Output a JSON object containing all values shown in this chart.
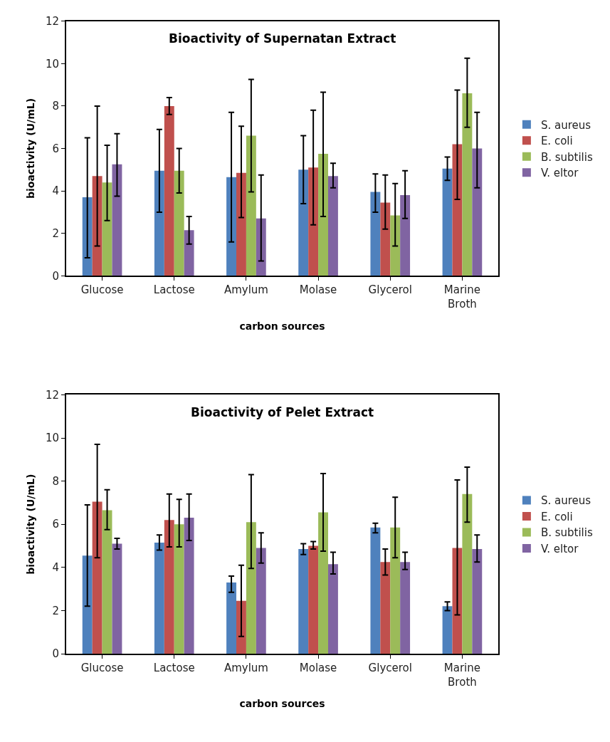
{
  "chart_data": [
    {
      "type": "bar",
      "title": "Bioactivity of Supernatan Extract",
      "xlabel": "carbon sources",
      "ylabel": "bioactivity (U/mL)",
      "categories": [
        "Glucose",
        "Lactose",
        "Amylum",
        "Molase",
        "Glycerol",
        "Marine Broth"
      ],
      "ylim": [
        0,
        12
      ],
      "yticks": [
        0,
        2,
        4,
        6,
        8,
        10,
        12
      ],
      "legend": "right",
      "series": [
        {
          "name": "S. aureus",
          "color": "#4f81bd",
          "values": [
            3.7,
            4.95,
            4.65,
            5.0,
            3.95,
            5.05
          ],
          "errors": [
            [
              0.85,
              6.5
            ],
            [
              3.0,
              6.9
            ],
            [
              1.6,
              7.7
            ],
            [
              3.4,
              6.6
            ],
            [
              3.0,
              4.8
            ],
            [
              4.5,
              5.6
            ]
          ]
        },
        {
          "name": "E. coli",
          "color": "#c0504d",
          "values": [
            4.7,
            8.0,
            4.85,
            5.1,
            3.45,
            6.2
          ],
          "errors": [
            [
              1.4,
              8.0
            ],
            [
              7.6,
              8.4
            ],
            [
              2.75,
              7.05
            ],
            [
              2.4,
              7.8
            ],
            [
              2.2,
              4.75
            ],
            [
              3.6,
              8.75
            ]
          ]
        },
        {
          "name": "B. subtilis",
          "color": "#9bbb59",
          "values": [
            4.4,
            4.95,
            6.6,
            5.75,
            2.85,
            8.6
          ],
          "errors": [
            [
              2.6,
              6.15
            ],
            [
              3.9,
              6.0
            ],
            [
              3.95,
              9.25
            ],
            [
              2.8,
              8.65
            ],
            [
              1.4,
              4.35
            ],
            [
              7.0,
              10.25
            ]
          ]
        },
        {
          "name": "V. eltor",
          "color": "#8064a2",
          "values": [
            5.25,
            2.15,
            2.7,
            4.7,
            3.8,
            6.0
          ],
          "errors": [
            [
              3.75,
              6.7
            ],
            [
              1.5,
              2.8
            ],
            [
              0.7,
              4.75
            ],
            [
              4.15,
              5.3
            ],
            [
              2.7,
              4.95
            ],
            [
              4.15,
              7.7
            ]
          ]
        }
      ]
    },
    {
      "type": "bar",
      "title": "Bioactivity of Pelet Extract",
      "xlabel": "carbon sources",
      "ylabel": "bioactivity (U/mL)",
      "categories": [
        "Glucose",
        "Lactose",
        "Amylum",
        "Molase",
        "Glycerol",
        "Marine Broth"
      ],
      "ylim": [
        0,
        12
      ],
      "yticks": [
        0,
        2,
        4,
        6,
        8,
        10,
        12
      ],
      "legend": "right",
      "series": [
        {
          "name": "S. aureus",
          "color": "#4f81bd",
          "values": [
            4.55,
            5.15,
            3.3,
            4.85,
            5.85,
            2.2
          ],
          "errors": [
            [
              2.2,
              6.9
            ],
            [
              4.8,
              5.5
            ],
            [
              2.85,
              3.6
            ],
            [
              4.6,
              5.1
            ],
            [
              5.6,
              6.05
            ],
            [
              2.0,
              2.4
            ]
          ]
        },
        {
          "name": "E. coli",
          "color": "#c0504d",
          "values": [
            7.05,
            6.2,
            2.45,
            5.0,
            4.25,
            4.9
          ],
          "errors": [
            [
              4.45,
              9.7
            ],
            [
              4.95,
              7.4
            ],
            [
              0.8,
              4.1
            ],
            [
              4.85,
              5.2
            ],
            [
              3.65,
              4.85
            ],
            [
              1.8,
              8.05
            ]
          ]
        },
        {
          "name": "B. subtilis",
          "color": "#9bbb59",
          "values": [
            6.65,
            6.0,
            6.1,
            6.55,
            5.85,
            7.4
          ],
          "errors": [
            [
              5.75,
              7.6
            ],
            [
              4.95,
              7.15
            ],
            [
              3.95,
              8.3
            ],
            [
              4.75,
              8.35
            ],
            [
              4.45,
              7.25
            ],
            [
              6.1,
              8.65
            ]
          ]
        },
        {
          "name": "V. eltor",
          "color": "#8064a2",
          "values": [
            5.1,
            6.3,
            4.9,
            4.15,
            4.25,
            4.85
          ],
          "errors": [
            [
              4.85,
              5.35
            ],
            [
              5.25,
              7.4
            ],
            [
              4.2,
              5.6
            ],
            [
              3.7,
              4.7
            ],
            [
              3.9,
              4.7
            ],
            [
              4.25,
              5.5
            ]
          ]
        }
      ]
    }
  ]
}
